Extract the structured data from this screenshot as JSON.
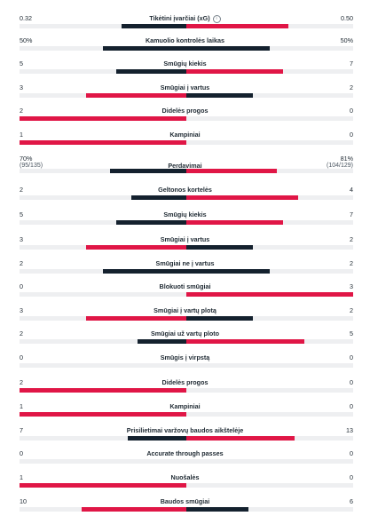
{
  "rows": [
    {
      "label": "Tikėtini įvarčiai (xG)",
      "home": "0.32",
      "away": "0.50",
      "home_share": 0.39,
      "away_share": 0.61,
      "home_win": false,
      "away_win": true,
      "info_icon": "info-icon"
    },
    {
      "label": "Kamuolio kontrolės laikas",
      "home": "50%",
      "away": "50%",
      "home_share": 0.5,
      "away_share": 0.5,
      "home_win": false,
      "away_win": false
    },
    {
      "label": "Smūgių kiekis",
      "home": "5",
      "away": "7",
      "home_share": 0.42,
      "away_share": 0.58,
      "home_win": false,
      "away_win": true
    },
    {
      "label": "Smūgiai į vartus",
      "home": "3",
      "away": "2",
      "home_share": 0.6,
      "away_share": 0.4,
      "home_win": true,
      "away_win": false
    },
    {
      "label": "Didelės progos",
      "home": "2",
      "away": "0",
      "home_share": 1.0,
      "away_share": 0.0,
      "home_win": true,
      "away_win": false
    },
    {
      "label": "Kampiniai",
      "home": "1",
      "away": "0",
      "home_share": 1.0,
      "away_share": 0.0,
      "home_win": true,
      "away_win": false
    },
    {
      "label": "Perdavimai",
      "home": "70%",
      "home_sub": "(95/135)",
      "away": "81%",
      "away_sub": "(104/129)",
      "home_share": 0.46,
      "away_share": 0.54,
      "home_win": false,
      "away_win": true
    },
    {
      "label": "Geltonos kortelės",
      "home": "2",
      "away": "4",
      "home_share": 0.33,
      "away_share": 0.67,
      "home_win": false,
      "away_win": true
    },
    {
      "label": "Smūgių kiekis",
      "home": "5",
      "away": "7",
      "home_share": 0.42,
      "away_share": 0.58,
      "home_win": false,
      "away_win": true
    },
    {
      "label": "Smūgiai į vartus",
      "home": "3",
      "away": "2",
      "home_share": 0.6,
      "away_share": 0.4,
      "home_win": true,
      "away_win": false
    },
    {
      "label": "Smūgiai ne į vartus",
      "home": "2",
      "away": "2",
      "home_share": 0.5,
      "away_share": 0.5,
      "home_win": false,
      "away_win": false
    },
    {
      "label": "Blokuoti smūgiai",
      "home": "0",
      "away": "3",
      "home_share": 0.0,
      "away_share": 1.0,
      "home_win": false,
      "away_win": true
    },
    {
      "label": "Smūgiai į vartų plotą",
      "home": "3",
      "away": "2",
      "home_share": 0.6,
      "away_share": 0.4,
      "home_win": true,
      "away_win": false
    },
    {
      "label": "Smūgiai už vartų ploto",
      "home": "2",
      "away": "5",
      "home_share": 0.29,
      "away_share": 0.71,
      "home_win": false,
      "away_win": true
    },
    {
      "label": "Smūgis į virpstą",
      "home": "0",
      "away": "0",
      "home_share": 0.0,
      "away_share": 0.0,
      "home_win": false,
      "away_win": false
    },
    {
      "label": "Didelės progos",
      "home": "2",
      "away": "0",
      "home_share": 1.0,
      "away_share": 0.0,
      "home_win": true,
      "away_win": false
    },
    {
      "label": "Kampiniai",
      "home": "1",
      "away": "0",
      "home_share": 1.0,
      "away_share": 0.0,
      "home_win": true,
      "away_win": false
    },
    {
      "label": "Prisilietimai varžovų baudos aikštelėje",
      "home": "7",
      "away": "13",
      "home_share": 0.35,
      "away_share": 0.65,
      "home_win": false,
      "away_win": true
    },
    {
      "label": "Accurate through passes",
      "home": "0",
      "away": "0",
      "home_share": 0.0,
      "away_share": 0.0,
      "home_win": false,
      "away_win": false
    },
    {
      "label": "Nuošalės",
      "home": "1",
      "away": "0",
      "home_share": 1.0,
      "away_share": 0.0,
      "home_win": true,
      "away_win": false
    },
    {
      "label": "Baudos smūgiai",
      "home": "10",
      "away": "6",
      "home_share": 0.63,
      "away_share": 0.37,
      "home_win": true,
      "away_win": false
    }
  ],
  "colors": {
    "leader": "#e01646",
    "other": "#14212e",
    "track": "#eeeff1"
  }
}
